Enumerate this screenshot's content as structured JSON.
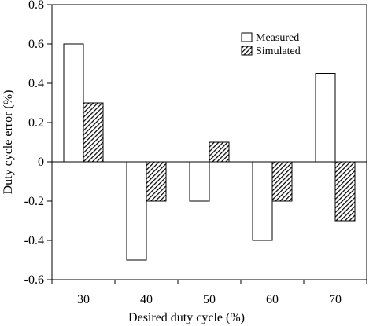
{
  "chart_data": {
    "type": "bar",
    "title": "",
    "xlabel": "Desired duty cycle (%)",
    "ylabel": "Duty cycle error (%)",
    "categories": [
      "30",
      "40",
      "50",
      "60",
      "70"
    ],
    "series": [
      {
        "name": "Measured",
        "values": [
          0.6,
          -0.5,
          -0.2,
          -0.4,
          0.45
        ],
        "fill": "#ffffff",
        "pattern": "none"
      },
      {
        "name": "Simulated",
        "values": [
          0.3,
          -0.2,
          0.1,
          -0.2,
          -0.3
        ],
        "fill": "#000000",
        "pattern": "diagonal-hatch"
      }
    ],
    "ylim": [
      -0.6,
      0.8
    ],
    "yticks": [
      -0.6,
      -0.4,
      -0.2,
      0,
      0.2,
      0.4,
      0.6,
      0.8
    ],
    "ytick_labels": [
      "-0.6",
      "-0.4",
      "-0.2",
      "0",
      "0.2",
      "0.4",
      "0.6",
      "0.8"
    ],
    "grid": false,
    "legend_position": "top-right"
  }
}
